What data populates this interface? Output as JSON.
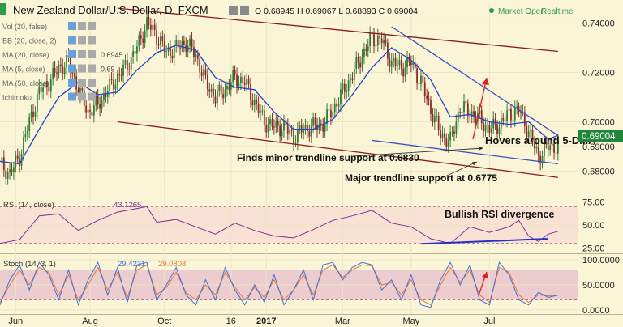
{
  "header": {
    "title": "New Zealand Dollar/U.S. Dollar, D, FXCM",
    "ohlc": "O 0.68945 H 0.69067 L 0.68893 C 0.69004",
    "market_status": "Market Open",
    "realtime": "Realtime",
    "market_dot_color": "#2e9e46"
  },
  "indicators_panel": [
    {
      "label": "Vol (20, false)",
      "value": ""
    },
    {
      "label": "BB (20, close, 2)",
      "value": ""
    },
    {
      "label": "MA (20, close)",
      "value": "0.6945"
    },
    {
      "label": "MA (5, close)",
      "value": "0.69"
    },
    {
      "label": "MA (50, close)",
      "value": ""
    },
    {
      "label": "Ichimoku",
      "value": ""
    }
  ],
  "annotations": {
    "hovers": "Hovers around 5-DMA",
    "minor": "Finds minor trendline support at 0.6830",
    "major": "Major trendline support at 0.6775",
    "bullish": "Bullish RSI divergence"
  },
  "chart_data": [
    {
      "type": "candlestick",
      "title": "New Zealand Dollar/U.S. Dollar, D, FXCM",
      "x_ticks": [
        "Jun",
        "Aug",
        "Oct",
        "16",
        "2017",
        "Mar",
        "May",
        "Jul"
      ],
      "y_ticks": [
        0.68,
        0.69,
        0.7,
        0.72,
        0.74
      ],
      "ylim": [
        0.672,
        0.748
      ],
      "last_price": "0.69004",
      "last_price_color": "#22863a",
      "series": [
        {
          "name": "Price (close)",
          "color": "#2e7d32",
          "points": [
            [
              0,
              0.683
            ],
            [
              5,
              0.679
            ],
            [
              10,
              0.686
            ],
            [
              15,
              0.7
            ],
            [
              20,
              0.712
            ],
            [
              25,
              0.716
            ],
            [
              30,
              0.722
            ],
            [
              35,
              0.724
            ],
            [
              40,
              0.713
            ],
            [
              45,
              0.704
            ],
            [
              50,
              0.707
            ],
            [
              55,
              0.713
            ],
            [
              60,
              0.718
            ],
            [
              65,
              0.723
            ],
            [
              70,
              0.73
            ],
            [
              75,
              0.74
            ],
            [
              80,
              0.735
            ],
            [
              85,
              0.728
            ],
            [
              90,
              0.73
            ],
            [
              95,
              0.732
            ],
            [
              100,
              0.727
            ],
            [
              105,
              0.716
            ],
            [
              110,
              0.71
            ],
            [
              115,
              0.713
            ],
            [
              120,
              0.718
            ],
            [
              125,
              0.716
            ],
            [
              130,
              0.708
            ],
            [
              135,
              0.7
            ],
            [
              140,
              0.698
            ],
            [
              145,
              0.698
            ],
            [
              150,
              0.694
            ],
            [
              155,
              0.697
            ],
            [
              160,
              0.698
            ],
            [
              165,
              0.699
            ],
            [
              170,
              0.705
            ],
            [
              175,
              0.712
            ],
            [
              180,
              0.719
            ],
            [
              185,
              0.727
            ],
            [
              190,
              0.734
            ],
            [
              195,
              0.733
            ],
            [
              200,
              0.724
            ],
            [
              205,
              0.722
            ],
            [
              210,
              0.724
            ],
            [
              215,
              0.716
            ],
            [
              220,
              0.705
            ],
            [
              225,
              0.695
            ],
            [
              230,
              0.692
            ],
            [
              235,
              0.706
            ],
            [
              240,
              0.704
            ],
            [
              245,
              0.701
            ],
            [
              250,
              0.697
            ],
            [
              255,
              0.699
            ],
            [
              260,
              0.703
            ],
            [
              265,
              0.705
            ],
            [
              270,
              0.696
            ],
            [
              275,
              0.686
            ],
            [
              280,
              0.69
            ],
            [
              285,
              0.69
            ]
          ]
        },
        {
          "name": "MA (20, close)",
          "color": "#2343c8",
          "points": [
            [
              0,
              0.684
            ],
            [
              10,
              0.683
            ],
            [
              20,
              0.697
            ],
            [
              30,
              0.71
            ],
            [
              40,
              0.716
            ],
            [
              50,
              0.711
            ],
            [
              60,
              0.712
            ],
            [
              70,
              0.721
            ],
            [
              80,
              0.728
            ],
            [
              90,
              0.731
            ],
            [
              100,
              0.729
            ],
            [
              110,
              0.718
            ],
            [
              120,
              0.714
            ],
            [
              130,
              0.713
            ],
            [
              140,
              0.704
            ],
            [
              150,
              0.697
            ],
            [
              160,
              0.697
            ],
            [
              170,
              0.701
            ],
            [
              180,
              0.711
            ],
            [
              190,
              0.722
            ],
            [
              200,
              0.73
            ],
            [
              210,
              0.725
            ],
            [
              220,
              0.717
            ],
            [
              230,
              0.702
            ],
            [
              240,
              0.703
            ],
            [
              250,
              0.7
            ],
            [
              260,
              0.699
            ],
            [
              270,
              0.7
            ],
            [
              280,
              0.693
            ],
            [
              285,
              0.6945
            ]
          ]
        }
      ],
      "trendlines": [
        {
          "name": "upper channel",
          "color": "#8a1e1e",
          "from": [
            60,
            0.746
          ],
          "to": [
            285,
            0.7285
          ]
        },
        {
          "name": "lower channel",
          "color": "#8a1e1e",
          "from": [
            60,
            0.7
          ],
          "to": [
            285,
            0.6775
          ]
        },
        {
          "name": "falling upper",
          "color": "#3b52c4",
          "from": [
            200,
            0.7385
          ],
          "to": [
            285,
            0.6945
          ]
        },
        {
          "name": "minor support",
          "color": "#3b52c4",
          "from": [
            190,
            0.6925
          ],
          "to": [
            285,
            0.683
          ]
        }
      ]
    },
    {
      "type": "line",
      "title": "RSI (14, close)",
      "value_label": "43.1265",
      "y_ticks": [
        25.0,
        50.0,
        75.0
      ],
      "ylim": [
        20,
        80
      ],
      "band": [
        30,
        70
      ],
      "series": [
        {
          "name": "RSI",
          "color": "#7a2f9a",
          "points": [
            [
              0,
              30
            ],
            [
              10,
              34
            ],
            [
              20,
              60
            ],
            [
              30,
              62
            ],
            [
              40,
              44
            ],
            [
              50,
              55
            ],
            [
              60,
              64
            ],
            [
              70,
              68
            ],
            [
              75,
              70
            ],
            [
              80,
              53
            ],
            [
              90,
              56
            ],
            [
              100,
              48
            ],
            [
              110,
              40
            ],
            [
              120,
              52
            ],
            [
              130,
              44
            ],
            [
              140,
              38
            ],
            [
              150,
              36
            ],
            [
              160,
              45
            ],
            [
              170,
              55
            ],
            [
              180,
              60
            ],
            [
              190,
              66
            ],
            [
              200,
              52
            ],
            [
              210,
              48
            ],
            [
              220,
              35
            ],
            [
              230,
              30
            ],
            [
              240,
              48
            ],
            [
              250,
              42
            ],
            [
              260,
              48
            ],
            [
              265,
              55
            ],
            [
              270,
              38
            ],
            [
              275,
              32
            ],
            [
              280,
              40
            ],
            [
              285,
              43.1
            ]
          ]
        }
      ],
      "divergence": {
        "from": [
          240,
          29.5
        ],
        "to": [
          280,
          35.0
        ],
        "color": "#2331c8"
      }
    },
    {
      "type": "line",
      "title": "Stoch (14, 3, 1)",
      "value_labels": [
        "29.4231",
        "29.0808"
      ],
      "y_ticks": [
        0.0,
        50.0,
        100.0
      ],
      "ylim": [
        -5,
        105
      ],
      "band": [
        20,
        80
      ],
      "series": [
        {
          "name": "%K",
          "color": "#3f6fd6",
          "points": [
            [
              0,
              10
            ],
            [
              5,
              60
            ],
            [
              10,
              90
            ],
            [
              15,
              40
            ],
            [
              20,
              95
            ],
            [
              25,
              70
            ],
            [
              30,
              20
            ],
            [
              35,
              80
            ],
            [
              40,
              10
            ],
            [
              45,
              60
            ],
            [
              50,
              95
            ],
            [
              55,
              30
            ],
            [
              60,
              85
            ],
            [
              65,
              15
            ],
            [
              70,
              90
            ],
            [
              75,
              95
            ],
            [
              80,
              20
            ],
            [
              85,
              50
            ],
            [
              90,
              85
            ],
            [
              95,
              30
            ],
            [
              100,
              10
            ],
            [
              105,
              60
            ],
            [
              110,
              20
            ],
            [
              115,
              85
            ],
            [
              120,
              40
            ],
            [
              125,
              10
            ],
            [
              130,
              50
            ],
            [
              135,
              15
            ],
            [
              140,
              70
            ],
            [
              145,
              10
            ],
            [
              150,
              40
            ],
            [
              155,
              80
            ],
            [
              160,
              20
            ],
            [
              165,
              90
            ],
            [
              170,
              95
            ],
            [
              175,
              60
            ],
            [
              180,
              85
            ],
            [
              185,
              95
            ],
            [
              190,
              90
            ],
            [
              195,
              40
            ],
            [
              200,
              60
            ],
            [
              205,
              20
            ],
            [
              210,
              70
            ],
            [
              215,
              10
            ],
            [
              220,
              5
            ],
            [
              225,
              60
            ],
            [
              230,
              95
            ],
            [
              235,
              50
            ],
            [
              240,
              90
            ],
            [
              245,
              20
            ],
            [
              250,
              10
            ],
            [
              255,
              95
            ],
            [
              260,
              70
            ],
            [
              265,
              20
            ],
            [
              270,
              10
            ],
            [
              275,
              35
            ],
            [
              280,
              25
            ],
            [
              285,
              29.42
            ]
          ]
        },
        {
          "name": "%D",
          "color": "#e07a3a",
          "points": [
            [
              0,
              15
            ],
            [
              5,
              50
            ],
            [
              10,
              80
            ],
            [
              15,
              50
            ],
            [
              20,
              85
            ],
            [
              25,
              75
            ],
            [
              30,
              30
            ],
            [
              35,
              70
            ],
            [
              40,
              20
            ],
            [
              45,
              50
            ],
            [
              50,
              85
            ],
            [
              55,
              40
            ],
            [
              60,
              75
            ],
            [
              65,
              25
            ],
            [
              70,
              80
            ],
            [
              75,
              90
            ],
            [
              80,
              30
            ],
            [
              85,
              45
            ],
            [
              90,
              75
            ],
            [
              95,
              35
            ],
            [
              100,
              20
            ],
            [
              105,
              50
            ],
            [
              110,
              30
            ],
            [
              115,
              75
            ],
            [
              120,
              45
            ],
            [
              125,
              20
            ],
            [
              130,
              45
            ],
            [
              135,
              25
            ],
            [
              140,
              60
            ],
            [
              145,
              20
            ],
            [
              150,
              40
            ],
            [
              155,
              70
            ],
            [
              160,
              30
            ],
            [
              165,
              80
            ],
            [
              170,
              90
            ],
            [
              175,
              65
            ],
            [
              180,
              80
            ],
            [
              185,
              90
            ],
            [
              190,
              88
            ],
            [
              195,
              50
            ],
            [
              200,
              55
            ],
            [
              205,
              30
            ],
            [
              210,
              60
            ],
            [
              215,
              20
            ],
            [
              220,
              10
            ],
            [
              225,
              50
            ],
            [
              230,
              85
            ],
            [
              235,
              55
            ],
            [
              240,
              80
            ],
            [
              245,
              30
            ],
            [
              250,
              15
            ],
            [
              255,
              85
            ],
            [
              260,
              75
            ],
            [
              265,
              30
            ],
            [
              270,
              15
            ],
            [
              275,
              30
            ],
            [
              280,
              28
            ],
            [
              285,
              29.08
            ]
          ]
        }
      ]
    }
  ]
}
